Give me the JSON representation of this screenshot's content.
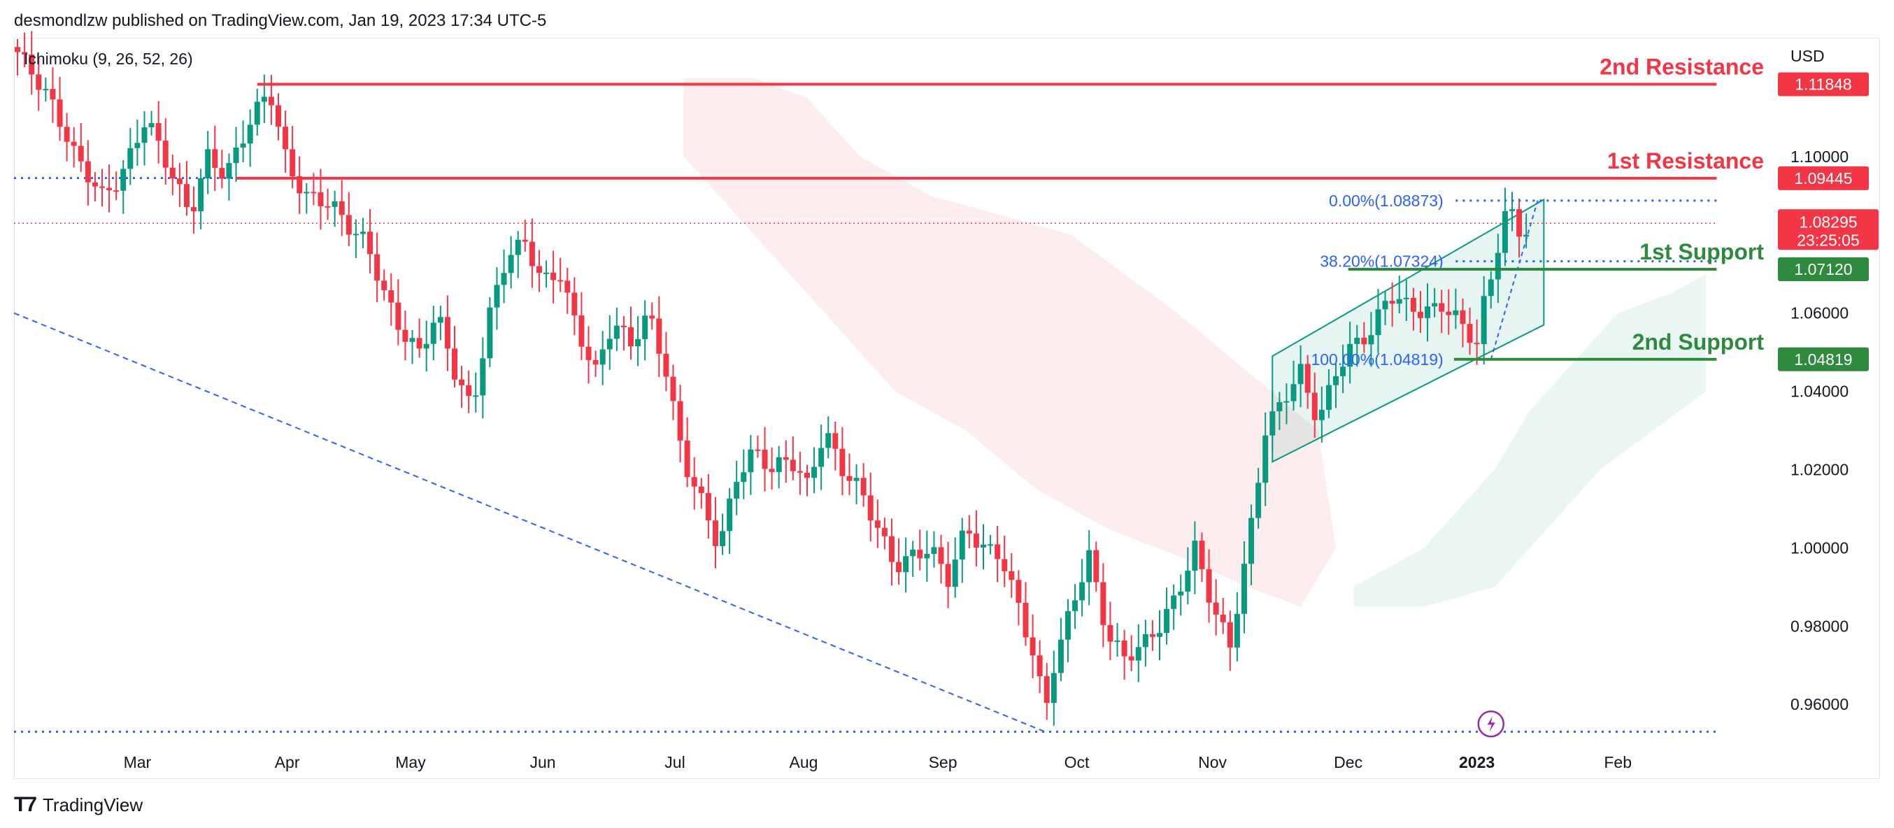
{
  "header": {
    "published": "desmondlzw published on TradingView.com, Jan 19, 2023 17:34 UTC-5"
  },
  "footer": {
    "brand": "TradingView"
  },
  "chart_data": {
    "type": "candlestick",
    "indicator": "Ichimoku (9, 26, 52, 26)",
    "currency": "USD",
    "ylim": [
      0.952,
      1.13
    ],
    "y_ticks": [
      "1.10000",
      "1.06000",
      "1.04000",
      "1.02000",
      "1.00000",
      "0.98000",
      "0.96000"
    ],
    "x_ticks": [
      {
        "label": "Mar",
        "x": 0.07
      },
      {
        "label": "Apr",
        "x": 0.155
      },
      {
        "label": "May",
        "x": 0.225
      },
      {
        "label": "Jun",
        "x": 0.3
      },
      {
        "label": "Jul",
        "x": 0.375
      },
      {
        "label": "Aug",
        "x": 0.448
      },
      {
        "label": "Sep",
        "x": 0.527
      },
      {
        "label": "Oct",
        "x": 0.603
      },
      {
        "label": "Nov",
        "x": 0.68
      },
      {
        "label": "Dec",
        "x": 0.757
      },
      {
        "label": "2023",
        "x": 0.83
      },
      {
        "label": "Feb",
        "x": 0.91
      }
    ],
    "close_path": [
      [
        0.0,
        1.128
      ],
      [
        0.02,
        1.115
      ],
      [
        0.035,
        1.1
      ],
      [
        0.05,
        1.09
      ],
      [
        0.06,
        1.094
      ],
      [
        0.075,
        1.11
      ],
      [
        0.085,
        1.1
      ],
      [
        0.1,
        1.085
      ],
      [
        0.11,
        1.1
      ],
      [
        0.12,
        1.095
      ],
      [
        0.135,
        1.11
      ],
      [
        0.145,
        1.117
      ],
      [
        0.155,
        1.098
      ],
      [
        0.165,
        1.09
      ],
      [
        0.18,
        1.088
      ],
      [
        0.19,
        1.082
      ],
      [
        0.2,
        1.078
      ],
      [
        0.21,
        1.065
      ],
      [
        0.22,
        1.055
      ],
      [
        0.23,
        1.05
      ],
      [
        0.24,
        1.06
      ],
      [
        0.25,
        1.045
      ],
      [
        0.26,
        1.035
      ],
      [
        0.27,
        1.06
      ],
      [
        0.28,
        1.075
      ],
      [
        0.29,
        1.078
      ],
      [
        0.3,
        1.068
      ],
      [
        0.31,
        1.07
      ],
      [
        0.32,
        1.055
      ],
      [
        0.33,
        1.045
      ],
      [
        0.34,
        1.058
      ],
      [
        0.35,
        1.052
      ],
      [
        0.36,
        1.06
      ],
      [
        0.37,
        1.045
      ],
      [
        0.38,
        1.022
      ],
      [
        0.39,
        1.012
      ],
      [
        0.4,
        1.0
      ],
      [
        0.41,
        1.018
      ],
      [
        0.42,
        1.025
      ],
      [
        0.43,
        1.02
      ],
      [
        0.44,
        1.023
      ],
      [
        0.45,
        1.016
      ],
      [
        0.46,
        1.03
      ],
      [
        0.47,
        1.02
      ],
      [
        0.48,
        1.015
      ],
      [
        0.49,
        1.005
      ],
      [
        0.5,
        0.995
      ],
      [
        0.51,
        0.998
      ],
      [
        0.52,
        1.0
      ],
      [
        0.53,
        0.992
      ],
      [
        0.54,
        1.005
      ],
      [
        0.55,
        1.0
      ],
      [
        0.56,
        0.998
      ],
      [
        0.57,
        0.985
      ],
      [
        0.58,
        0.97
      ],
      [
        0.585,
        0.958
      ],
      [
        0.59,
        0.97
      ],
      [
        0.6,
        0.985
      ],
      [
        0.61,
        0.998
      ],
      [
        0.62,
        0.978
      ],
      [
        0.63,
        0.972
      ],
      [
        0.64,
        0.975
      ],
      [
        0.65,
        0.98
      ],
      [
        0.66,
        0.988
      ],
      [
        0.67,
        1.0
      ],
      [
        0.68,
        0.985
      ],
      [
        0.69,
        0.975
      ],
      [
        0.7,
        1.0
      ],
      [
        0.71,
        1.03
      ],
      [
        0.72,
        1.038
      ],
      [
        0.73,
        1.045
      ],
      [
        0.74,
        1.032
      ],
      [
        0.75,
        1.045
      ],
      [
        0.76,
        1.052
      ],
      [
        0.77,
        1.055
      ],
      [
        0.78,
        1.065
      ],
      [
        0.79,
        1.062
      ],
      [
        0.8,
        1.06
      ],
      [
        0.81,
        1.062
      ],
      [
        0.82,
        1.058
      ],
      [
        0.83,
        1.052
      ],
      [
        0.835,
        1.065
      ],
      [
        0.84,
        1.072
      ],
      [
        0.845,
        1.085
      ],
      [
        0.85,
        1.085
      ],
      [
        0.855,
        1.08
      ],
      [
        0.86,
        1.082
      ]
    ],
    "levels": [
      {
        "name": "2nd Resistance",
        "value": "1.11848",
        "y": 1.11848,
        "color": "#f23645"
      },
      {
        "name": "1st Resistance",
        "value": "1.09445",
        "y": 1.09445,
        "color": "#f23645"
      },
      {
        "name": "1st Support",
        "value": "1.07120",
        "y": 1.0712,
        "color": "#2e8b3e"
      },
      {
        "name": "2nd Support",
        "value": "1.04819",
        "y": 1.04819,
        "color": "#2e8b3e"
      }
    ],
    "fib_labels": [
      "0.00%(1.08873)",
      "38.20%(1.07324)",
      "100.00%(1.04819)"
    ],
    "last_price": {
      "value": "1.08295",
      "y": 1.08295,
      "countdown": "23:25:05",
      "color": "#f23645"
    },
    "colors": {
      "up": "#089981",
      "down": "#f23645",
      "fib": "#2962ff",
      "resistance": "#f23645",
      "support": "#2e8b3e"
    }
  }
}
